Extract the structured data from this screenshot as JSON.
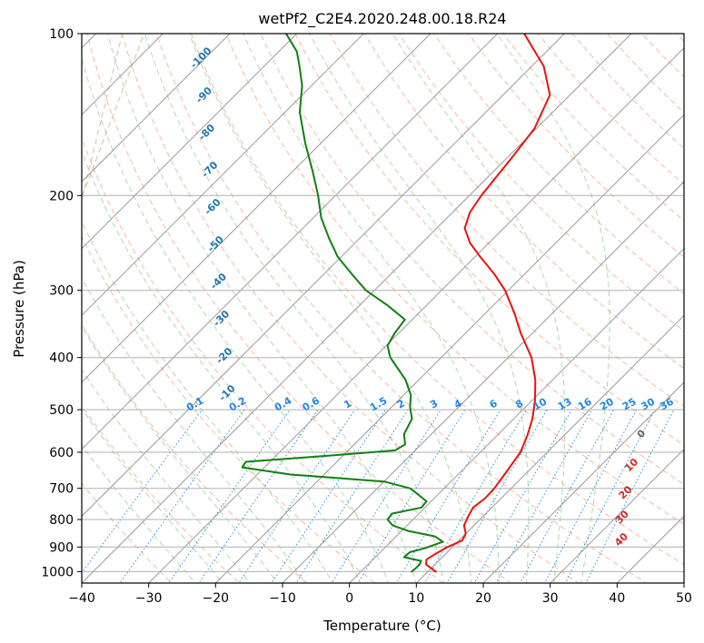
{
  "chart_data": {
    "type": "line",
    "chart_kind": "skew-T log-P",
    "title": "wetPf2_C2E4.2020.248.00.18.R24",
    "xlabel": "Temperature (°C)",
    "ylabel": "Pressure (hPa)",
    "xlim": [
      -40,
      50
    ],
    "ylim": [
      1050,
      100
    ],
    "y_scale": "log",
    "grid": true,
    "x_ticks": [
      "−40",
      "−30",
      "−20",
      "−10",
      "0",
      "10",
      "20",
      "30",
      "40",
      "50"
    ],
    "x_tick_values": [
      -40,
      -30,
      -20,
      -10,
      0,
      10,
      20,
      30,
      40,
      50
    ],
    "y_ticks": [
      "100",
      "200",
      "300",
      "400",
      "500",
      "600",
      "700",
      "800",
      "900",
      "1000"
    ],
    "y_tick_values": [
      100,
      200,
      300,
      400,
      500,
      600,
      700,
      800,
      900,
      1000
    ],
    "series": [
      {
        "role": "temperature",
        "color": "#e8140c",
        "points": [
          [
            1000,
            11.2
          ],
          [
            990,
            10.4
          ],
          [
            970,
            8.7
          ],
          [
            950,
            8.0
          ],
          [
            930,
            8.4
          ],
          [
            900,
            9.3
          ],
          [
            875,
            10.5
          ],
          [
            850,
            10.0
          ],
          [
            820,
            8.5
          ],
          [
            790,
            7.8
          ],
          [
            760,
            7.2
          ],
          [
            730,
            7.6
          ],
          [
            700,
            7.5
          ],
          [
            650,
            6.8
          ],
          [
            600,
            6.0
          ],
          [
            560,
            4.6
          ],
          [
            520,
            2.8
          ],
          [
            480,
            0.4
          ],
          [
            440,
            -2.6
          ],
          [
            400,
            -6.5
          ],
          [
            360,
            -11.8
          ],
          [
            330,
            -15.8
          ],
          [
            300,
            -20.5
          ],
          [
            280,
            -24.5
          ],
          [
            260,
            -29.2
          ],
          [
            245,
            -32.8
          ],
          [
            230,
            -35.8
          ],
          [
            215,
            -37.4
          ],
          [
            200,
            -38.2
          ],
          [
            170,
            -39.3
          ],
          [
            150,
            -40.3
          ],
          [
            130,
            -43.0
          ],
          [
            115,
            -48.2
          ],
          [
            100,
            -56.0
          ]
        ]
      },
      {
        "role": "dewpoint",
        "color": "#108010",
        "points": [
          [
            1000,
            7.6
          ],
          [
            985,
            7.7
          ],
          [
            970,
            7.7
          ],
          [
            955,
            7.4
          ],
          [
            940,
            4.3
          ],
          [
            920,
            4.4
          ],
          [
            905,
            6.0
          ],
          [
            880,
            7.8
          ],
          [
            860,
            5.8
          ],
          [
            840,
            1.0
          ],
          [
            820,
            -2.2
          ],
          [
            800,
            -3.8
          ],
          [
            780,
            -4.0
          ],
          [
            760,
            -0.5
          ],
          [
            740,
            -0.7
          ],
          [
            715,
            -3.4
          ],
          [
            700,
            -5.1
          ],
          [
            680,
            -10.0
          ],
          [
            660,
            -25.0
          ],
          [
            640,
            -33.3
          ],
          [
            625,
            -33.6
          ],
          [
            610,
            -23.0
          ],
          [
            595,
            -13.0
          ],
          [
            580,
            -12.4
          ],
          [
            555,
            -14.1
          ],
          [
            520,
            -15.2
          ],
          [
            495,
            -17.2
          ],
          [
            470,
            -18.9
          ],
          [
            440,
            -22.0
          ],
          [
            400,
            -27.6
          ],
          [
            380,
            -29.8
          ],
          [
            360,
            -30.6
          ],
          [
            340,
            -31.1
          ],
          [
            320,
            -35.8
          ],
          [
            300,
            -41.3
          ],
          [
            280,
            -45.8
          ],
          [
            260,
            -50.5
          ],
          [
            240,
            -54.6
          ],
          [
            220,
            -58.8
          ],
          [
            200,
            -62.6
          ],
          [
            180,
            -67.1
          ],
          [
            160,
            -72.3
          ],
          [
            140,
            -77.8
          ],
          [
            125,
            -81.4
          ],
          [
            115,
            -84.7
          ],
          [
            108,
            -87.3
          ],
          [
            100,
            -91.6
          ]
        ]
      }
    ],
    "dry_adiabats": {
      "color": "#e0734d",
      "label_color": "#d62728",
      "labels": [
        "0",
        "10",
        "20",
        "30",
        "40"
      ],
      "label_values": [
        0,
        10,
        20,
        30,
        40
      ]
    },
    "moist_adiabats": {
      "color": "#1f77b4",
      "labels": [
        "-100",
        "-90",
        "-80",
        "-70",
        "-60",
        "-50",
        "-40",
        "-30",
        "-20",
        "-10"
      ],
      "label_values": [
        -100,
        -90,
        -80,
        -70,
        -60,
        -50,
        -40,
        -30,
        -20,
        -10
      ],
      "green_dashed_color": "#5aab5a"
    },
    "mixing_ratio_lines": {
      "color": "#1e88e5",
      "labels": [
        "0.1",
        "0.2",
        "0.4",
        "0.6",
        "1",
        "1.5",
        "2",
        "3",
        "4",
        "6",
        "8",
        "10",
        "13",
        "16",
        "20",
        "25",
        "30",
        "36"
      ],
      "values": [
        0.1,
        0.2,
        0.4,
        0.6,
        1,
        1.5,
        2,
        3,
        4,
        6,
        8,
        10,
        13,
        16,
        20,
        25,
        30,
        36
      ]
    },
    "isotherm_color": "#7a7a7a"
  }
}
